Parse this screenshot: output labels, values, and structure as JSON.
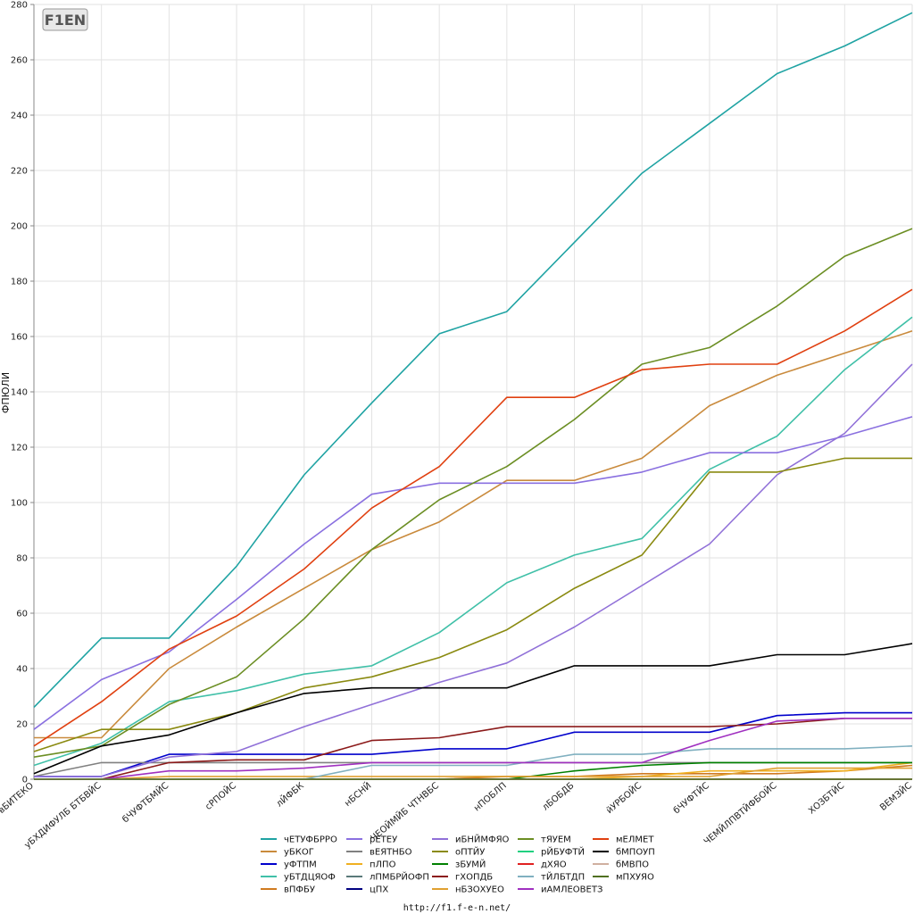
{
  "logo_text": "F1EN",
  "footer_url": "http://f1.f-e-n.net/",
  "chart_data": {
    "type": "line",
    "ylabel": "ФПЮЛИ",
    "xlabel": "",
    "ylim": [
      0,
      280
    ],
    "yticks": [
      0,
      20,
      40,
      60,
      80,
      100,
      120,
      140,
      160,
      180,
      200,
      220,
      240,
      260,
      280
    ],
    "grid": true,
    "legend_position": "bottom",
    "categories": [
      "вБИТЕКО",
      "уБХДИФУЛБ БТБВЙС",
      "бЧУФТБМЙС",
      "сРПОЙС",
      "лЙФБК",
      "нБСНЙ",
      "ЧЕОЙМЙБ ЧТНВБС",
      "нПОБЛП",
      "лБОБДБ",
      "йУРБОЙС",
      "бЧУФТЙС",
      "ЧЕМЙЛПВТЙФБОЙС",
      "ХОЗБТЙС",
      "ВЕМЗЙС"
    ],
    "series": [
      {
        "name": "чЕТУФБРРО",
        "color": "#1fa3a3",
        "values": [
          26,
          51,
          51,
          77,
          110,
          136,
          161,
          169,
          194,
          219,
          237,
          255,
          265,
          277
        ]
      },
      {
        "name": "уБКОГ",
        "color": "#c98a3c",
        "values": [
          15,
          15,
          40,
          55,
          69,
          83,
          93,
          108,
          108,
          116,
          135,
          146,
          154,
          162
        ]
      },
      {
        "name": "уФТПМ",
        "color": "#0000cc",
        "values": [
          1,
          1,
          9,
          9,
          9,
          9,
          11,
          11,
          17,
          17,
          17,
          23,
          24,
          24
        ]
      },
      {
        "name": "уБТДЦЯОФ",
        "color": "#40c0a8",
        "values": [
          5,
          13,
          28,
          32,
          38,
          41,
          53,
          71,
          81,
          87,
          112,
          124,
          148,
          167
        ]
      },
      {
        "name": "вПФБУ",
        "color": "#d07a20",
        "values": [
          0,
          0,
          0,
          0,
          0,
          0,
          0,
          1,
          1,
          2,
          2,
          2,
          3,
          5
        ]
      },
      {
        "name": "рЕТЕУ",
        "color": "#8a70e0",
        "values": [
          18,
          36,
          46,
          65,
          85,
          103,
          107,
          107,
          107,
          111,
          118,
          118,
          124,
          131
        ]
      },
      {
        "name": "вЕЯТНБО",
        "color": "#808080",
        "values": [
          1,
          6,
          6,
          6,
          6,
          6,
          6,
          6,
          6,
          6,
          6,
          6,
          6,
          6
        ]
      },
      {
        "name": "пЛПО",
        "color": "#f0b020",
        "values": [
          0,
          0,
          0,
          0,
          0,
          0,
          0,
          0,
          0,
          1,
          3,
          3,
          3,
          6
        ]
      },
      {
        "name": "лПМБРЙОФП",
        "color": "#5a7a7a",
        "values": [
          0,
          0,
          0,
          0,
          0,
          0,
          0,
          0,
          0,
          0,
          0,
          0,
          0,
          0
        ]
      },
      {
        "name": "цПХ",
        "color": "#000080",
        "values": [
          0,
          0,
          0,
          0,
          0,
          0,
          0,
          0,
          0,
          0,
          0,
          0,
          0,
          0
        ]
      },
      {
        "name": "иБНЙМФЯО",
        "color": "#9070d8",
        "values": [
          1,
          1,
          8,
          10,
          19,
          27,
          35,
          42,
          55,
          70,
          85,
          110,
          125,
          150
        ]
      },
      {
        "name": "оПТЙУ",
        "color": "#8a8a10",
        "values": [
          10,
          18,
          18,
          24,
          33,
          37,
          44,
          54,
          69,
          81,
          111,
          111,
          116,
          116
        ]
      },
      {
        "name": "зБУМЙ",
        "color": "#008000",
        "values": [
          0,
          0,
          0,
          0,
          0,
          0,
          0,
          0,
          3,
          5,
          6,
          6,
          6,
          6
        ]
      },
      {
        "name": "гХОПДБ",
        "color": "#8b1a1a",
        "values": [
          0,
          0,
          6,
          7,
          7,
          14,
          15,
          19,
          19,
          19,
          19,
          20,
          22,
          22
        ]
      },
      {
        "name": "нБЗОХУЕО",
        "color": "#e0a030",
        "values": [
          0,
          0,
          1,
          1,
          1,
          1,
          1,
          1,
          1,
          1,
          1,
          4,
          4,
          4
        ]
      },
      {
        "name": "тЯУЕМ",
        "color": "#6b8e23",
        "values": [
          8,
          12,
          27,
          37,
          58,
          83,
          101,
          113,
          130,
          150,
          156,
          171,
          189,
          199
        ]
      },
      {
        "name": "рЙБУФТЙ",
        "color": "#20d080",
        "values": [
          0,
          0,
          0,
          0,
          0,
          0,
          0,
          0,
          0,
          0,
          0,
          0,
          0,
          0
        ]
      },
      {
        "name": "дХЯО",
        "color": "#e02020",
        "values": [
          0,
          0,
          0,
          0,
          0,
          0,
          0,
          0,
          0,
          0,
          0,
          0,
          0,
          0
        ]
      },
      {
        "name": "тЙЛБТДП",
        "color": "#80b0c0",
        "values": [
          0,
          0,
          0,
          0,
          0,
          5,
          5,
          5,
          9,
          9,
          11,
          11,
          11,
          12
        ]
      },
      {
        "name": "иАМЛЕОВЕТЗ",
        "color": "#a030c0",
        "values": [
          0,
          0,
          3,
          3,
          4,
          6,
          6,
          6,
          6,
          6,
          14,
          21,
          22,
          22
        ]
      },
      {
        "name": "мЕЛМЕТ",
        "color": "#e04010",
        "values": [
          12,
          28,
          47,
          59,
          76,
          98,
          113,
          138,
          138,
          148,
          150,
          150,
          162,
          177
        ]
      },
      {
        "name": "бМПОУП",
        "color": "#000000",
        "values": [
          2,
          12,
          16,
          24,
          31,
          33,
          33,
          33,
          41,
          41,
          41,
          45,
          45,
          49
        ]
      },
      {
        "name": "бМВПО",
        "color": "#d0b0a0",
        "values": [
          0,
          0,
          0,
          0,
          0,
          0,
          0,
          0,
          0,
          0,
          0,
          0,
          0,
          0
        ]
      },
      {
        "name": "мПХУЯО",
        "color": "#507020",
        "values": [
          0,
          0,
          0,
          0,
          0,
          0,
          0,
          0,
          0,
          0,
          0,
          0,
          0,
          0
        ]
      }
    ]
  }
}
